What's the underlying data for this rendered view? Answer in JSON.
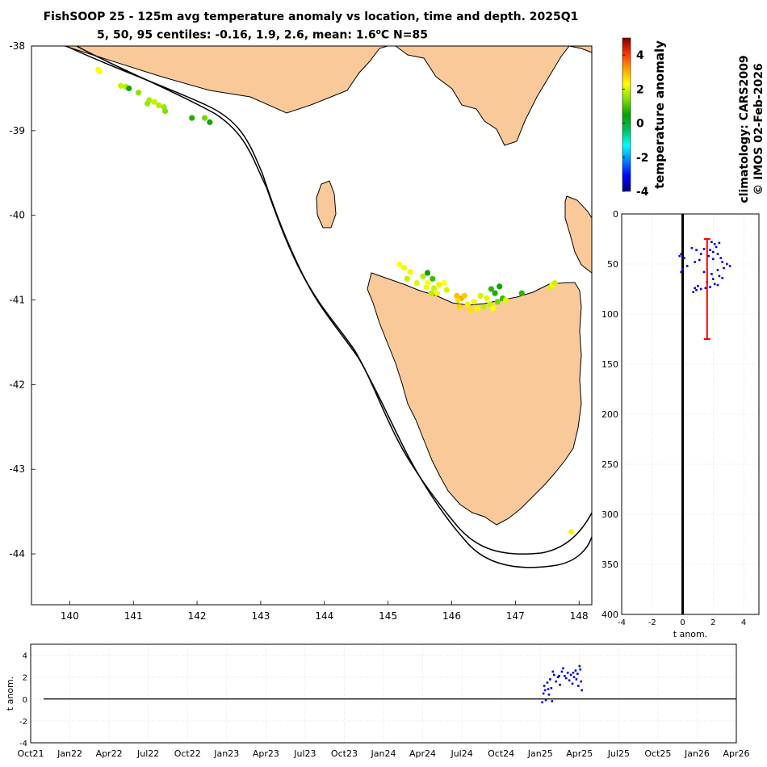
{
  "title": {
    "line1": "FishSOOP 25 - 125m avg temperature anomaly vs location, time and depth. 2025Q1",
    "line2_prefix": "5, 50, 95 centiles: -0.16, 1.9, 2.6, mean: 1.6",
    "line2_deg": "o",
    "line2_suffix": "C N=85"
  },
  "side_text": {
    "climatology": "climatology: CARS2009",
    "copyright": "© IMOS 02-Feb-2026"
  },
  "colors": {
    "land": "#f9c999",
    "series": "#0000e0",
    "errorbar": "#ff0000",
    "grid": "#d0d0d0",
    "colormap": [
      "#00007f",
      "#0000ff",
      "#007fff",
      "#00ffff",
      "#00c060",
      "#00a000",
      "#80e000",
      "#ffff00",
      "#ff9f00",
      "#ff3000",
      "#7f0000"
    ]
  },
  "chart_data": [
    {
      "id": "map",
      "type": "scatter",
      "xlim": [
        139.4,
        148.2
      ],
      "ylim": [
        -44.6,
        -38
      ],
      "xticks": [
        140,
        141,
        142,
        143,
        144,
        145,
        146,
        147,
        148
      ],
      "yticks": [
        -38,
        -39,
        -40,
        -41,
        -42,
        -43,
        -44
      ],
      "points": [
        {
          "lon": 140.45,
          "lat": -38.28,
          "anom": 2.4
        },
        {
          "lon": 140.47,
          "lat": -38.3,
          "anom": 2.3
        },
        {
          "lon": 140.8,
          "lat": -38.47,
          "anom": 1.9
        },
        {
          "lon": 140.88,
          "lat": -38.48,
          "anom": 1.8
        },
        {
          "lon": 140.93,
          "lat": -38.5,
          "anom": 0.6
        },
        {
          "lon": 141.08,
          "lat": -38.55,
          "anom": 1.5
        },
        {
          "lon": 141.25,
          "lat": -38.64,
          "anom": 1.7
        },
        {
          "lon": 141.33,
          "lat": -38.66,
          "anom": 1.9
        },
        {
          "lon": 141.22,
          "lat": -38.68,
          "anom": 1.6
        },
        {
          "lon": 141.4,
          "lat": -38.7,
          "anom": 1.8
        },
        {
          "lon": 141.48,
          "lat": -38.72,
          "anom": 1.6
        },
        {
          "lon": 141.5,
          "lat": -38.77,
          "anom": 1.4
        },
        {
          "lon": 141.92,
          "lat": -38.85,
          "anom": 0.7
        },
        {
          "lon": 142.12,
          "lat": -38.85,
          "anom": 1.3
        },
        {
          "lon": 142.2,
          "lat": -38.9,
          "anom": 0.6
        },
        {
          "lon": 145.18,
          "lat": -40.58,
          "anom": 2.3
        },
        {
          "lon": 145.25,
          "lat": -40.62,
          "anom": 2.2
        },
        {
          "lon": 145.35,
          "lat": -40.67,
          "anom": 2.4
        },
        {
          "lon": 145.3,
          "lat": -40.75,
          "anom": 1.9
        },
        {
          "lon": 145.45,
          "lat": -40.8,
          "anom": 2.1
        },
        {
          "lon": 145.55,
          "lat": -40.72,
          "anom": 1.8
        },
        {
          "lon": 145.62,
          "lat": -40.68,
          "anom": 0.5
        },
        {
          "lon": 145.7,
          "lat": -40.75,
          "anom": 0.9
        },
        {
          "lon": 145.6,
          "lat": -40.85,
          "anom": 2.2
        },
        {
          "lon": 145.72,
          "lat": -40.86,
          "anom": 1.9
        },
        {
          "lon": 145.8,
          "lat": -40.82,
          "anom": 2.1
        },
        {
          "lon": 145.88,
          "lat": -40.8,
          "anom": 2.3
        },
        {
          "lon": 145.77,
          "lat": -40.92,
          "anom": 2.4
        },
        {
          "lon": 145.68,
          "lat": -40.92,
          "anom": 1.8
        },
        {
          "lon": 145.92,
          "lat": -40.88,
          "anom": 2.0
        },
        {
          "lon": 145.62,
          "lat": -40.8,
          "anom": 2.3
        },
        {
          "lon": 146.08,
          "lat": -40.95,
          "anom": 2.9
        },
        {
          "lon": 146.15,
          "lat": -40.98,
          "anom": 3.1
        },
        {
          "lon": 146.1,
          "lat": -41.0,
          "anom": 2.6
        },
        {
          "lon": 146.2,
          "lat": -40.95,
          "anom": 2.8
        },
        {
          "lon": 146.25,
          "lat": -41.05,
          "anom": 2.5
        },
        {
          "lon": 146.12,
          "lat": -41.08,
          "anom": 2.7
        },
        {
          "lon": 146.35,
          "lat": -41.02,
          "anom": 2.2
        },
        {
          "lon": 146.45,
          "lat": -40.95,
          "anom": 2.0
        },
        {
          "lon": 146.55,
          "lat": -40.98,
          "anom": 2.1
        },
        {
          "lon": 146.4,
          "lat": -41.1,
          "anom": 2.4
        },
        {
          "lon": 146.3,
          "lat": -41.12,
          "anom": 2.6
        },
        {
          "lon": 146.5,
          "lat": -41.08,
          "anom": 1.8
        },
        {
          "lon": 146.62,
          "lat": -40.87,
          "anom": 0.8
        },
        {
          "lon": 146.68,
          "lat": -40.92,
          "anom": 0.7
        },
        {
          "lon": 146.75,
          "lat": -40.84,
          "anom": 0.6
        },
        {
          "lon": 146.8,
          "lat": -40.98,
          "anom": 0.9
        },
        {
          "lon": 146.72,
          "lat": -41.02,
          "anom": 1.3
        },
        {
          "lon": 146.6,
          "lat": -41.05,
          "anom": 1.9
        },
        {
          "lon": 146.85,
          "lat": -41.0,
          "anom": 2.1
        },
        {
          "lon": 146.65,
          "lat": -41.1,
          "anom": 2.3
        },
        {
          "lon": 147.1,
          "lat": -40.92,
          "anom": 0.8
        },
        {
          "lon": 147.55,
          "lat": -40.85,
          "anom": 2.0
        },
        {
          "lon": 147.58,
          "lat": -40.82,
          "anom": 2.2
        },
        {
          "lon": 147.62,
          "lat": -40.8,
          "anom": 1.9
        },
        {
          "lon": 147.88,
          "lat": -43.74,
          "anom": 2.4
        }
      ]
    },
    {
      "id": "colorbar",
      "type": "heatmap",
      "ylabel": "temperature anomaly",
      "ylim": [
        -4,
        5
      ],
      "ticks": [
        4,
        2,
        0,
        -2,
        -4
      ]
    },
    {
      "id": "depth_profile",
      "type": "scatter",
      "xlabel": "t anom.",
      "xlim": [
        -4,
        5
      ],
      "ylim": [
        0,
        400
      ],
      "xticks": [
        -4,
        -2,
        0,
        2,
        4
      ],
      "yticks": [
        0,
        50,
        100,
        150,
        200,
        250,
        300,
        350,
        400
      ],
      "errorbar": {
        "x": 1.6,
        "depth_top": 25,
        "depth_bottom": 125
      },
      "points": [
        {
          "x": -0.1,
          "d": 40
        },
        {
          "x": 0.1,
          "d": 44
        },
        {
          "x": -0.2,
          "d": 42
        },
        {
          "x": 0.0,
          "d": 55
        },
        {
          "x": -0.1,
          "d": 58
        },
        {
          "x": 0.3,
          "d": 52
        },
        {
          "x": 0.6,
          "d": 34
        },
        {
          "x": 0.9,
          "d": 36
        },
        {
          "x": 1.2,
          "d": 40
        },
        {
          "x": 1.1,
          "d": 46
        },
        {
          "x": 0.8,
          "d": 48
        },
        {
          "x": 1.4,
          "d": 35
        },
        {
          "x": 1.9,
          "d": 28
        },
        {
          "x": 2.1,
          "d": 30
        },
        {
          "x": 2.4,
          "d": 29
        },
        {
          "x": 2.2,
          "d": 33
        },
        {
          "x": 1.8,
          "d": 36
        },
        {
          "x": 2.0,
          "d": 38
        },
        {
          "x": 2.3,
          "d": 40
        },
        {
          "x": 1.7,
          "d": 42
        },
        {
          "x": 2.5,
          "d": 44
        },
        {
          "x": 2.0,
          "d": 45
        },
        {
          "x": 2.6,
          "d": 48
        },
        {
          "x": 2.9,
          "d": 50
        },
        {
          "x": 3.1,
          "d": 52
        },
        {
          "x": 2.7,
          "d": 54
        },
        {
          "x": 2.3,
          "d": 56
        },
        {
          "x": 1.4,
          "d": 58
        },
        {
          "x": 1.9,
          "d": 60
        },
        {
          "x": 2.4,
          "d": 62
        },
        {
          "x": 2.0,
          "d": 65
        },
        {
          "x": 2.6,
          "d": 64
        },
        {
          "x": 1.6,
          "d": 68
        },
        {
          "x": 2.1,
          "d": 70
        },
        {
          "x": 2.3,
          "d": 71
        },
        {
          "x": 1.0,
          "d": 72
        },
        {
          "x": 0.8,
          "d": 74
        },
        {
          "x": 0.9,
          "d": 76
        },
        {
          "x": 1.2,
          "d": 75
        },
        {
          "x": 1.5,
          "d": 74
        },
        {
          "x": 1.8,
          "d": 73
        },
        {
          "x": 0.7,
          "d": 78
        }
      ]
    },
    {
      "id": "time_series",
      "type": "scatter",
      "ylabel": "t anom.",
      "ylim": [
        -4,
        5
      ],
      "yticks": [
        4,
        2,
        0,
        -2,
        -4
      ],
      "x_tick_labels": [
        "Oct21",
        "Jan22",
        "Apr22",
        "Jul22",
        "Oct22",
        "Jan23",
        "Apr23",
        "Jul23",
        "Oct23",
        "Jan24",
        "Apr24",
        "Jul24",
        "Oct24",
        "Jan25",
        "Apr25",
        "Jul25",
        "Oct25",
        "Jan26",
        "Apr26"
      ],
      "points": [
        {
          "t": 13.05,
          "y": -0.3
        },
        {
          "t": 13.08,
          "y": 0.5
        },
        {
          "t": 13.1,
          "y": 1.2
        },
        {
          "t": 13.12,
          "y": 0.8
        },
        {
          "t": 13.14,
          "y": -0.1
        },
        {
          "t": 13.18,
          "y": 1.5
        },
        {
          "t": 13.22,
          "y": 0.4
        },
        {
          "t": 13.25,
          "y": 1.8
        },
        {
          "t": 13.28,
          "y": 1.0
        },
        {
          "t": 13.3,
          "y": -0.2
        },
        {
          "t": 13.35,
          "y": 2.2
        },
        {
          "t": 13.4,
          "y": 1.6
        },
        {
          "t": 13.45,
          "y": 2.0
        },
        {
          "t": 13.5,
          "y": 1.3
        },
        {
          "t": 13.55,
          "y": 2.5
        },
        {
          "t": 13.58,
          "y": 2.8
        },
        {
          "t": 13.62,
          "y": 2.1
        },
        {
          "t": 13.66,
          "y": 1.9
        },
        {
          "t": 13.7,
          "y": 2.4
        },
        {
          "t": 13.74,
          "y": 1.7
        },
        {
          "t": 13.78,
          "y": 2.2
        },
        {
          "t": 13.82,
          "y": 1.4
        },
        {
          "t": 13.86,
          "y": 2.0
        },
        {
          "t": 13.9,
          "y": 2.6
        },
        {
          "t": 13.92,
          "y": 1.8
        },
        {
          "t": 13.95,
          "y": 2.3
        },
        {
          "t": 13.97,
          "y": 1.2
        },
        {
          "t": 14.0,
          "y": 3.0
        },
        {
          "t": 14.02,
          "y": 2.7
        },
        {
          "t": 14.04,
          "y": 1.6
        },
        {
          "t": 14.06,
          "y": 0.8
        },
        {
          "t": 13.2,
          "y": 0.9
        },
        {
          "t": 13.32,
          "y": 2.5
        },
        {
          "t": 13.48,
          "y": 2.1
        },
        {
          "t": 13.84,
          "y": 2.4
        }
      ]
    }
  ]
}
